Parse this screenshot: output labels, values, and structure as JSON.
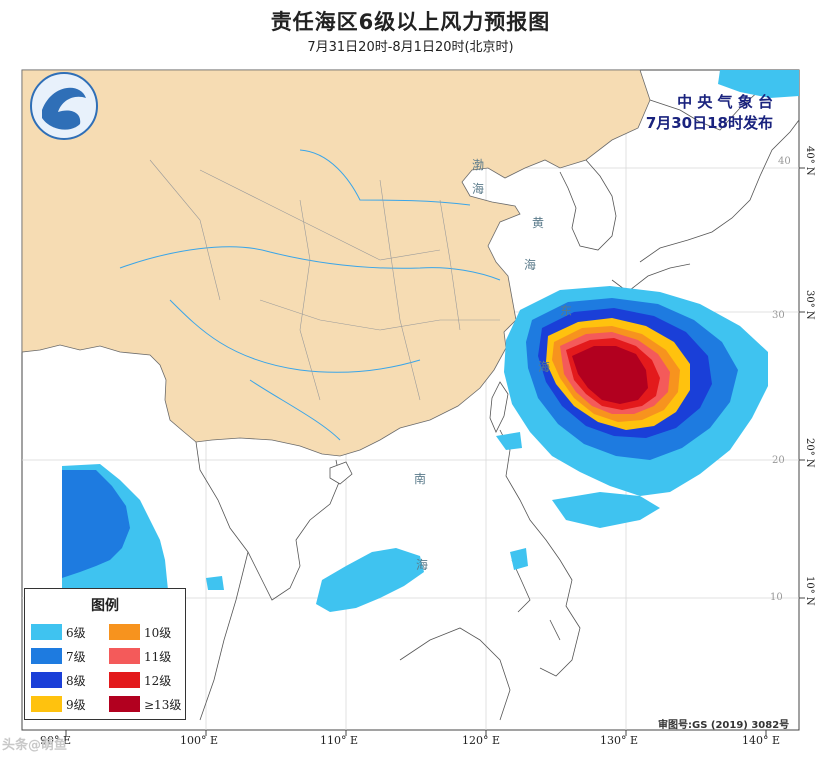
{
  "title": "责任海区6级以上风力预报图",
  "subtitle": "7月31日20时-8月1日20时(北京时)",
  "agency": "中 央 气 象 台",
  "issued": "7月30日18时发布",
  "approval_number": "审图号:GS (2019) 3082号",
  "watermark": "头条@萌鱼",
  "logo_icon": "cma-logo-icon",
  "legend": {
    "title": "图例",
    "items": [
      {
        "label": "6级",
        "color": "#3fc3f0"
      },
      {
        "label": "10级",
        "color": "#f7931e"
      },
      {
        "label": "7级",
        "color": "#1e7be0"
      },
      {
        "label": "11级",
        "color": "#f45a5a"
      },
      {
        "label": "8级",
        "color": "#1a3fd8"
      },
      {
        "label": "12级",
        "color": "#e31a1c"
      },
      {
        "label": "9级",
        "color": "#ffc20e"
      },
      {
        "label": "≥13级",
        "color": "#b2001f"
      }
    ]
  },
  "axes": {
    "x_ticks": [
      "90° E",
      "100° E",
      "110° E",
      "120° E",
      "130° E",
      "140° E"
    ],
    "y_ticks": [
      "40° N",
      "30° N",
      "20° N",
      "10° N"
    ],
    "inner_lat_labels": [
      "40",
      "30",
      "20",
      "10"
    ]
  },
  "sea_labels": [
    "渤",
    "海",
    "黄",
    "海",
    "东",
    "海",
    "南",
    "海"
  ]
}
